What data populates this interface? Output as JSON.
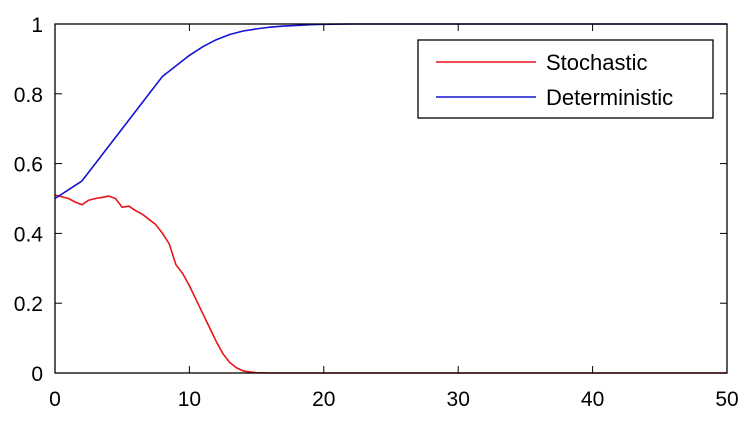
{
  "chart_data": {
    "type": "line",
    "title": "",
    "xlabel": "",
    "ylabel": "",
    "xlim": [
      0,
      50
    ],
    "ylim": [
      0,
      1
    ],
    "x_ticks": [
      "0",
      "10",
      "20",
      "30",
      "40",
      "50"
    ],
    "y_ticks": [
      "0",
      "0.2",
      "0.4",
      "0.6",
      "0.8",
      "1"
    ],
    "grid": false,
    "legend_position": "top-right",
    "series": [
      {
        "name": "Stochastic",
        "color": "#e8141a",
        "x": [
          0,
          0.5,
          1,
          1.5,
          2,
          2.5,
          3,
          3.5,
          4,
          4.5,
          5,
          5.5,
          6,
          6.5,
          7,
          7.5,
          8,
          8.5,
          9,
          9.5,
          10,
          10.5,
          11,
          11.5,
          12,
          12.5,
          13,
          13.5,
          14,
          14.5,
          15,
          16,
          17,
          18,
          20,
          25,
          30,
          35,
          40,
          45,
          50
        ],
        "y": [
          0.51,
          0.505,
          0.5,
          0.49,
          0.482,
          0.495,
          0.5,
          0.503,
          0.507,
          0.5,
          0.475,
          0.478,
          0.465,
          0.455,
          0.44,
          0.425,
          0.4,
          0.37,
          0.31,
          0.285,
          0.25,
          0.21,
          0.17,
          0.13,
          0.09,
          0.055,
          0.03,
          0.015,
          0.006,
          0.003,
          0.001,
          0,
          0,
          0,
          0,
          0,
          0,
          0,
          0,
          0,
          0
        ]
      },
      {
        "name": "Deterministic",
        "color": "#1414d2",
        "x": [
          0,
          1,
          2,
          3,
          4,
          5,
          6,
          7,
          8,
          9,
          10,
          11,
          12,
          13,
          14,
          15,
          16,
          17,
          18,
          19,
          20,
          22,
          25,
          30,
          35,
          40,
          45,
          50
        ],
        "y": [
          0.5,
          0.525,
          0.55,
          0.6,
          0.65,
          0.7,
          0.75,
          0.8,
          0.85,
          0.88,
          0.91,
          0.935,
          0.955,
          0.97,
          0.98,
          0.986,
          0.991,
          0.994,
          0.996,
          0.998,
          0.999,
          1,
          1,
          1,
          1,
          1,
          1,
          1
        ]
      }
    ]
  }
}
